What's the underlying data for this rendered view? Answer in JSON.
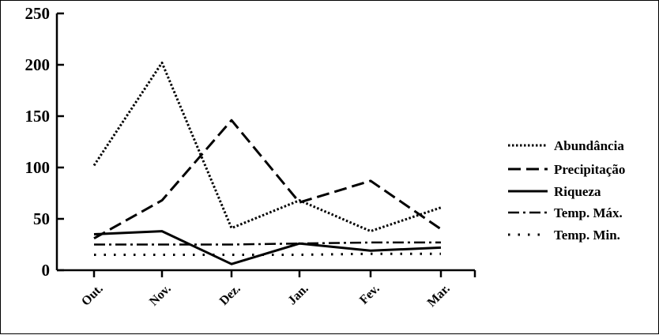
{
  "chart_data": {
    "type": "line",
    "categories": [
      "Out.",
      "Nov.",
      "Dez.",
      "Jan.",
      "Fev.",
      "Mar."
    ],
    "yticks": [
      "0",
      "50",
      "100",
      "150",
      "200",
      "250"
    ],
    "ylim": [
      0,
      250
    ],
    "grid": false,
    "legend_position": "right",
    "series": [
      {
        "name": "Abundância",
        "style": "dotted",
        "values": [
          102,
          202,
          41,
          68,
          38,
          61
        ]
      },
      {
        "name": "Precipitação",
        "style": "dashed",
        "values": [
          31,
          68,
          146,
          66,
          87,
          40
        ]
      },
      {
        "name": "Riqueza",
        "style": "solid",
        "values": [
          35,
          38,
          6,
          26,
          19,
          22
        ]
      },
      {
        "name": "Temp. Máx.",
        "style": "dashdot",
        "values": [
          25,
          25,
          25,
          26,
          27,
          27
        ]
      },
      {
        "name": "Temp. Min.",
        "style": "sparsedot",
        "values": [
          15,
          15,
          15,
          15,
          16,
          16
        ]
      }
    ]
  }
}
